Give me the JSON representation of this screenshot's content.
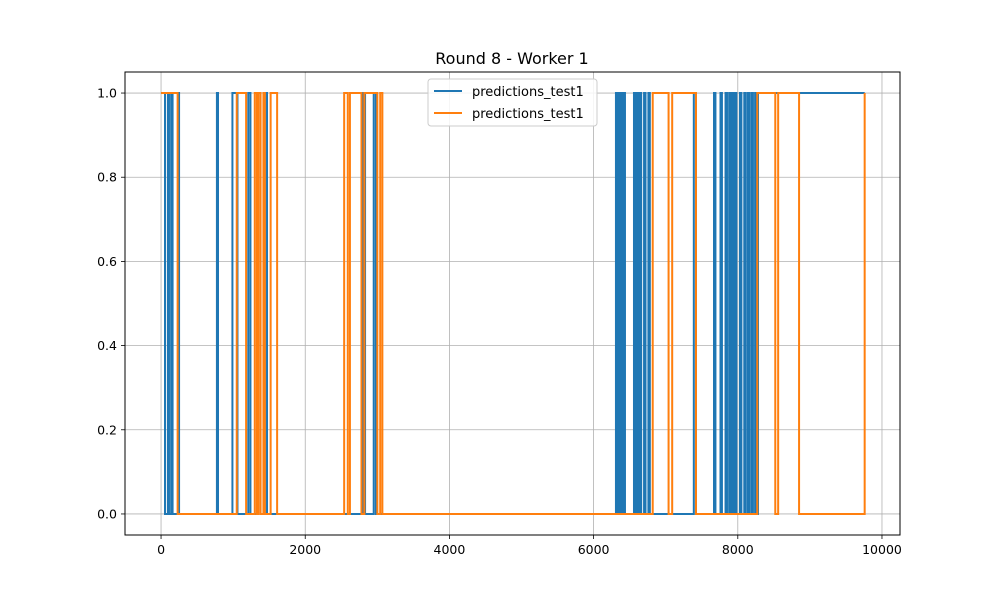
{
  "chart_data": {
    "type": "line",
    "title": "Round 8 - Worker 1",
    "xlabel": "",
    "ylabel": "",
    "xlim": [
      -500,
      10250
    ],
    "ylim": [
      -0.05,
      1.05
    ],
    "xticks": [
      0,
      2000,
      4000,
      6000,
      8000,
      10000
    ],
    "xtick_labels": [
      "0",
      "2000",
      "4000",
      "6000",
      "8000",
      "10000"
    ],
    "yticks": [
      0.0,
      0.2,
      0.4,
      0.6,
      0.8,
      1.0
    ],
    "ytick_labels": [
      "0.0",
      "0.2",
      "0.4",
      "0.6",
      "0.8",
      "1.0"
    ],
    "grid": true,
    "legend_position": "upper center",
    "series": [
      {
        "name": "predictions_test1",
        "color": "#1f77b4",
        "values": [
          [
            0,
            1
          ],
          [
            55,
            1
          ],
          [
            55,
            0
          ],
          [
            95,
            0
          ],
          [
            95,
            1
          ],
          [
            110,
            1
          ],
          [
            110,
            0
          ],
          [
            140,
            0
          ],
          [
            140,
            1
          ],
          [
            160,
            1
          ],
          [
            160,
            0
          ],
          [
            235,
            0
          ],
          [
            235,
            1
          ],
          [
            250,
            1
          ],
          [
            250,
            0
          ],
          [
            775,
            0
          ],
          [
            775,
            1
          ],
          [
            790,
            1
          ],
          [
            790,
            0
          ],
          [
            990,
            0
          ],
          [
            990,
            1
          ],
          [
            1060,
            1
          ],
          [
            1060,
            0
          ],
          [
            1210,
            0
          ],
          [
            1210,
            1
          ],
          [
            1240,
            1
          ],
          [
            1240,
            0
          ],
          [
            1330,
            0
          ],
          [
            1330,
            1
          ],
          [
            1380,
            1
          ],
          [
            1380,
            0
          ],
          [
            1440,
            0
          ],
          [
            1440,
            1
          ],
          [
            1470,
            1
          ],
          [
            1470,
            0
          ],
          [
            2700,
            0
          ],
          [
            2700,
            0
          ],
          [
            2800,
            0
          ],
          [
            2800,
            1
          ],
          [
            2830,
            1
          ],
          [
            2830,
            0
          ],
          [
            2890,
            0
          ],
          [
            2890,
            0
          ],
          [
            2950,
            0
          ],
          [
            2950,
            1
          ],
          [
            2980,
            1
          ],
          [
            2980,
            0
          ],
          [
            6310,
            0
          ],
          [
            6310,
            1
          ],
          [
            6330,
            1
          ],
          [
            6330,
            0
          ],
          [
            6350,
            0
          ],
          [
            6350,
            1
          ],
          [
            6370,
            1
          ],
          [
            6370,
            0
          ],
          [
            6390,
            0
          ],
          [
            6390,
            1
          ],
          [
            6405,
            1
          ],
          [
            6405,
            0
          ],
          [
            6420,
            0
          ],
          [
            6420,
            1
          ],
          [
            6435,
            1
          ],
          [
            6435,
            0
          ],
          [
            6560,
            0
          ],
          [
            6560,
            1
          ],
          [
            6580,
            1
          ],
          [
            6580,
            0
          ],
          [
            6600,
            0
          ],
          [
            6600,
            1
          ],
          [
            6620,
            1
          ],
          [
            6620,
            0
          ],
          [
            6640,
            0
          ],
          [
            6640,
            1
          ],
          [
            6660,
            1
          ],
          [
            6660,
            0
          ],
          [
            6700,
            0
          ],
          [
            6700,
            1
          ],
          [
            6720,
            1
          ],
          [
            6720,
            0
          ],
          [
            6760,
            0
          ],
          [
            6760,
            1
          ],
          [
            6780,
            1
          ],
          [
            6780,
            0
          ],
          [
            7390,
            0
          ],
          [
            7390,
            1
          ],
          [
            7420,
            1
          ],
          [
            7420,
            0
          ],
          [
            7670,
            0
          ],
          [
            7670,
            1
          ],
          [
            7690,
            1
          ],
          [
            7690,
            0
          ],
          [
            7760,
            0
          ],
          [
            7760,
            1
          ],
          [
            7780,
            1
          ],
          [
            7780,
            0
          ],
          [
            7830,
            0
          ],
          [
            7830,
            1
          ],
          [
            7850,
            1
          ],
          [
            7850,
            0
          ],
          [
            7880,
            0
          ],
          [
            7880,
            1
          ],
          [
            7900,
            1
          ],
          [
            7900,
            0
          ],
          [
            7920,
            0
          ],
          [
            7920,
            1
          ],
          [
            7940,
            1
          ],
          [
            7940,
            0
          ],
          [
            7960,
            0
          ],
          [
            7960,
            1
          ],
          [
            7980,
            1
          ],
          [
            7980,
            0
          ],
          [
            8030,
            0
          ],
          [
            8030,
            1
          ],
          [
            8050,
            1
          ],
          [
            8050,
            0
          ],
          [
            8090,
            0
          ],
          [
            8090,
            1
          ],
          [
            8110,
            1
          ],
          [
            8110,
            0
          ],
          [
            8140,
            0
          ],
          [
            8140,
            1
          ],
          [
            8160,
            1
          ],
          [
            8160,
            0
          ],
          [
            8190,
            0
          ],
          [
            8190,
            1
          ],
          [
            8210,
            1
          ],
          [
            8210,
            0
          ],
          [
            8240,
            0
          ],
          [
            8240,
            1
          ],
          [
            8260,
            1
          ],
          [
            8260,
            0
          ],
          [
            8280,
            0
          ],
          [
            8280,
            1
          ],
          [
            9760,
            1
          ]
        ]
      },
      {
        "name": "predictions_test1",
        "color": "#ff7f0e",
        "values": [
          [
            0,
            1
          ],
          [
            230,
            1
          ],
          [
            230,
            0
          ],
          [
            1050,
            0
          ],
          [
            1050,
            1
          ],
          [
            1180,
            1
          ],
          [
            1180,
            0
          ],
          [
            1300,
            0
          ],
          [
            1300,
            1
          ],
          [
            1330,
            1
          ],
          [
            1330,
            0
          ],
          [
            1350,
            0
          ],
          [
            1350,
            1
          ],
          [
            1380,
            1
          ],
          [
            1380,
            0
          ],
          [
            1420,
            0
          ],
          [
            1420,
            1
          ],
          [
            1440,
            1
          ],
          [
            1440,
            0
          ],
          [
            1520,
            0
          ],
          [
            1520,
            1
          ],
          [
            1610,
            1
          ],
          [
            1610,
            0
          ],
          [
            2540,
            0
          ],
          [
            2540,
            1
          ],
          [
            2590,
            1
          ],
          [
            2590,
            0
          ],
          [
            2620,
            0
          ],
          [
            2620,
            1
          ],
          [
            2780,
            1
          ],
          [
            2780,
            0
          ],
          [
            2820,
            0
          ],
          [
            2820,
            1
          ],
          [
            3000,
            1
          ],
          [
            3000,
            0
          ],
          [
            3040,
            0
          ],
          [
            3040,
            1
          ],
          [
            3070,
            1
          ],
          [
            3070,
            0
          ],
          [
            6820,
            0
          ],
          [
            6820,
            1
          ],
          [
            7040,
            1
          ],
          [
            7040,
            0
          ],
          [
            7090,
            0
          ],
          [
            7090,
            1
          ],
          [
            7420,
            1
          ],
          [
            7420,
            0
          ],
          [
            8270,
            0
          ],
          [
            8270,
            1
          ],
          [
            8520,
            1
          ],
          [
            8520,
            0
          ],
          [
            8560,
            0
          ],
          [
            8560,
            1
          ],
          [
            8850,
            1
          ],
          [
            8850,
            0
          ],
          [
            9760,
            0
          ],
          [
            9760,
            1
          ]
        ]
      }
    ]
  }
}
